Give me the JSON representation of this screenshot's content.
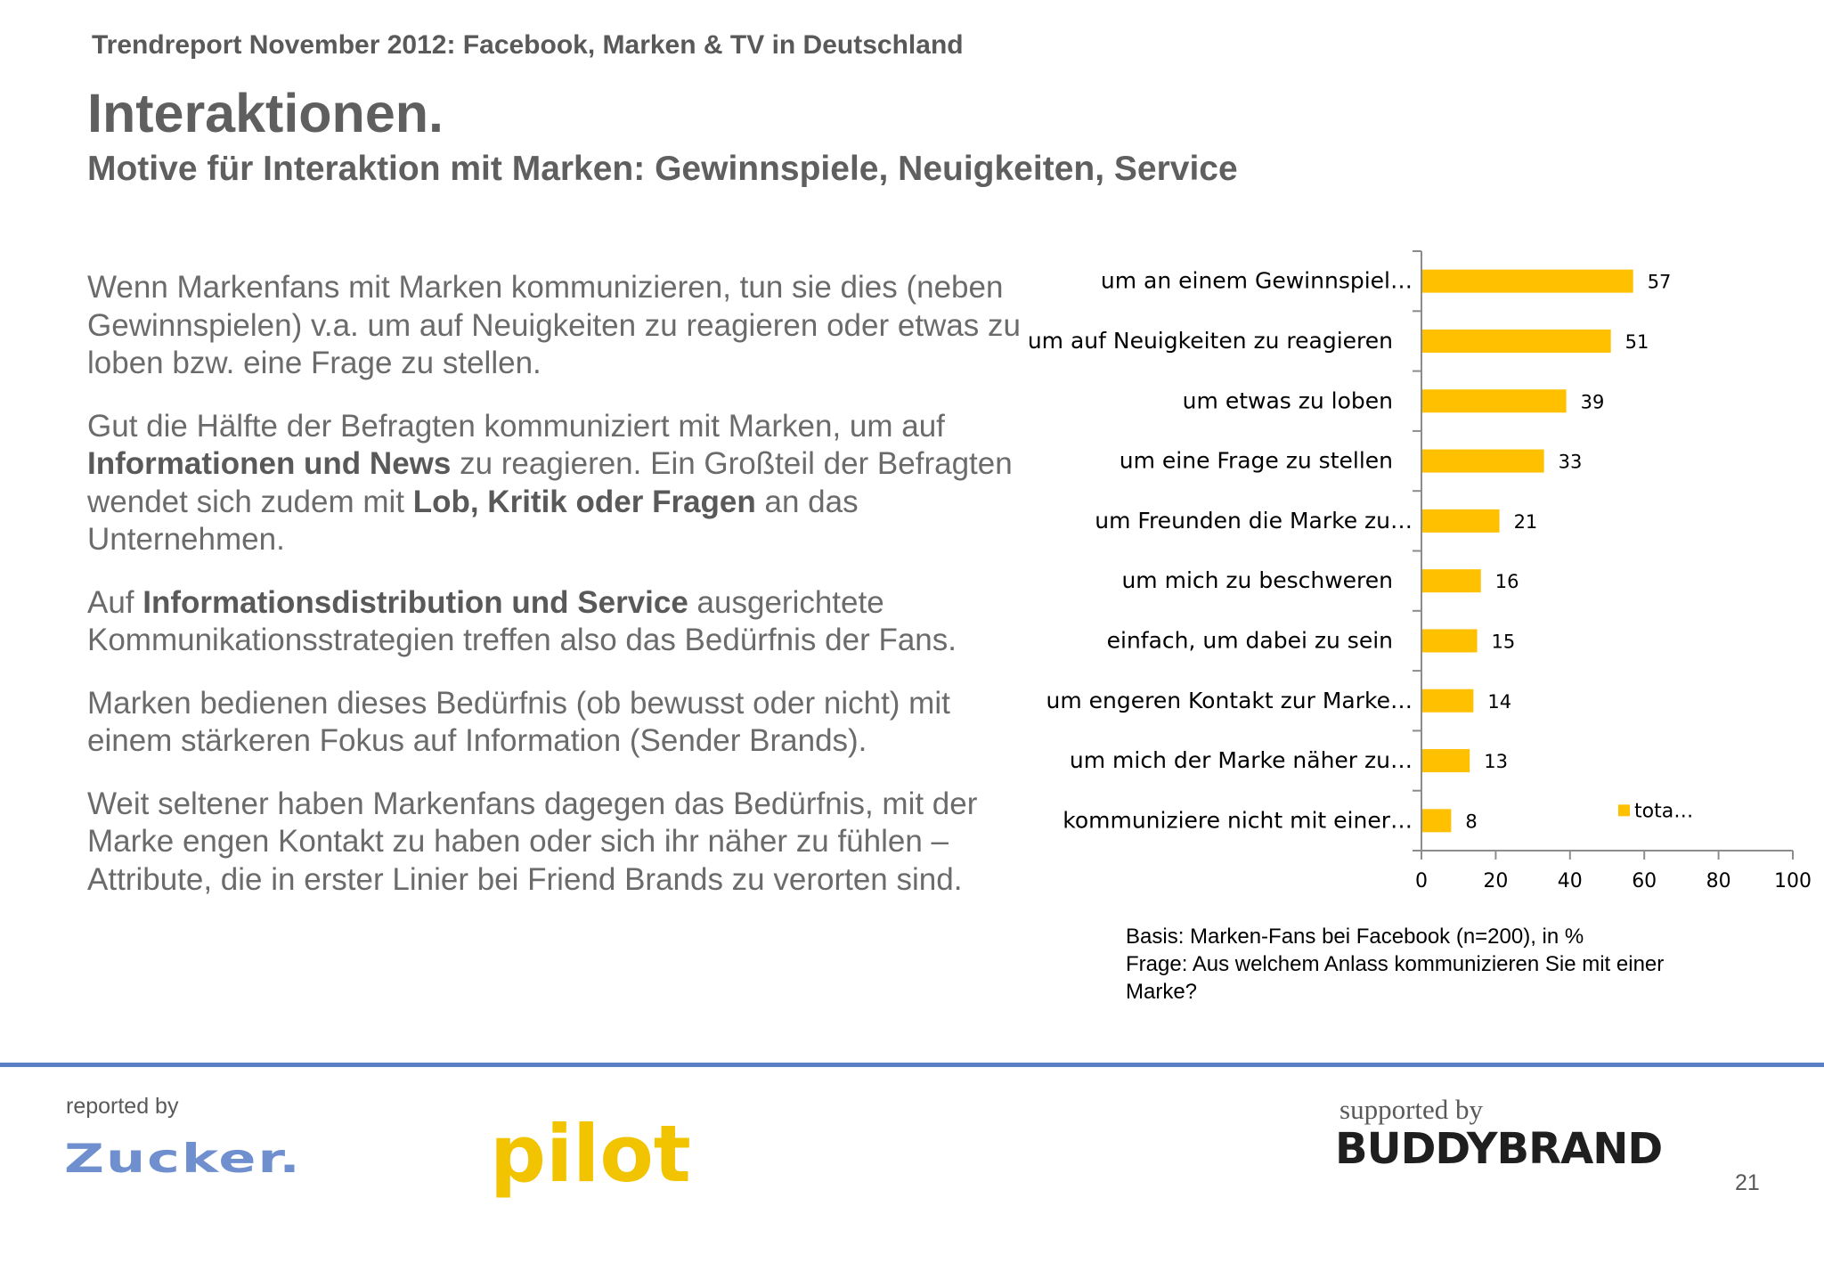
{
  "header": {
    "report_line": "Trendreport November 2012: Facebook, Marken & TV in Deutschland",
    "title": "Interaktionen.",
    "subtitle": "Motive für Interaktion mit Marken: Gewinnspiele, Neuigkeiten, Service"
  },
  "body": {
    "p1": "Wenn Markenfans mit Marken kommunizieren, tun sie dies (neben Gewinnspielen) v.a. um auf Neuigkeiten zu reagieren oder etwas zu loben bzw. eine Frage zu stellen.",
    "p2_a": "Gut die Hälfte der Befragten kommuniziert mit Marken, um auf ",
    "p2_b": "Informationen und News",
    "p2_c": " zu reagieren. Ein Großteil der Befragten wendet sich zudem mit ",
    "p2_d": "Lob, Kritik oder Fragen",
    "p2_e": " an das Unternehmen.",
    "p3_a": "Auf ",
    "p3_b": "Informationsdistribution und Service",
    "p3_c": " ausgerichtete Kommunikationsstrategien treffen also das Bedürfnis der Fans.",
    "p4": "Marken bedienen dieses Bedürfnis (ob bewusst oder nicht) mit einem stärkeren Fokus auf Information (Sender Brands).",
    "p5": "Weit seltener haben Markenfans dagegen das Bedürfnis, mit der Marke engen Kontakt zu haben oder sich ihr näher zu fühlen – Attribute, die in erster Linier bei Friend Brands zu verorten sind."
  },
  "chart_data": {
    "type": "bar",
    "orientation": "horizontal",
    "categories": [
      "um an einem Gewinnspiel…",
      "um auf Neuigkeiten zu reagieren",
      "um etwas zu loben",
      "um eine Frage zu stellen",
      "um Freunden die Marke zu…",
      "um mich zu beschweren",
      "einfach, um dabei zu sein",
      "um engeren Kontakt zur Marke…",
      "um mich der Marke näher zu…",
      "kommuniziere nicht mit einer…"
    ],
    "series": [
      {
        "name": "tota…",
        "values": [
          57,
          51,
          39,
          33,
          21,
          16,
          15,
          14,
          13,
          8
        ],
        "color": "#ffc000"
      }
    ],
    "xlim": [
      0,
      100
    ],
    "xticks": [
      0,
      20,
      40,
      60,
      80,
      100
    ],
    "data_labels": true,
    "legend_position": "inside bottom-right",
    "grid": false
  },
  "note": {
    "basis": "Basis: Marken-Fans bei Facebook (n=200), in %",
    "question_line1": "Frage: Aus welchem Anlass kommunizieren Sie mit einer",
    "question_line2": "Marke?"
  },
  "footer": {
    "reported_by": "reported by",
    "zucker_logo": "Zucker.",
    "pilot_logo": "pilot",
    "supported_by": "supported by",
    "buddybrand_logo": "BUDDYBRAND",
    "page_number": "21",
    "rule_color": "#5b7fc4"
  }
}
